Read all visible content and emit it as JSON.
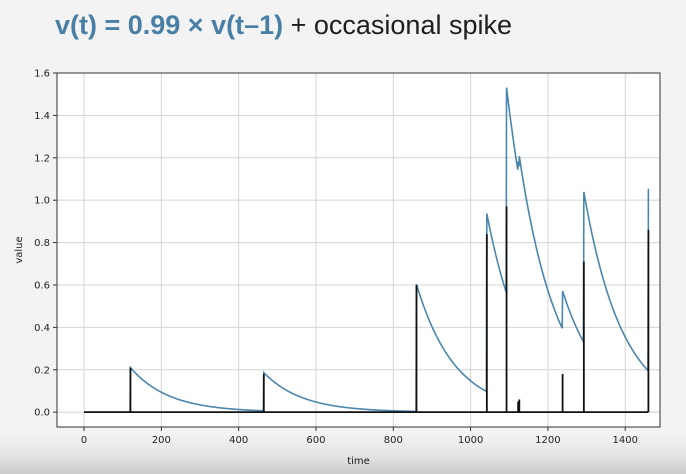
{
  "title": {
    "main": "v(t) = 0.99 × v(t–1)",
    "rest": " + occasional spike"
  },
  "chart_data": {
    "type": "line",
    "xlabel": "time",
    "ylabel": "value",
    "xlim": [
      -70,
      1490
    ],
    "ylim": [
      -0.07,
      1.6
    ],
    "xticks": [
      0,
      200,
      400,
      600,
      800,
      1000,
      1200,
      1400
    ],
    "yticks": [
      0.0,
      0.2,
      0.4,
      0.6,
      0.8,
      1.0,
      1.2,
      1.4,
      1.6
    ],
    "grid": true,
    "decay_factor": 0.99,
    "series_end_x": 1460,
    "spikes": [
      {
        "x": 120,
        "value": 0.21
      },
      {
        "x": 465,
        "value": 0.18
      },
      {
        "x": 860,
        "value": 0.6
      },
      {
        "x": 1042,
        "value": 0.84
      },
      {
        "x": 1093,
        "value": 0.97
      },
      {
        "x": 1123,
        "value": 0.05
      },
      {
        "x": 1126,
        "value": 0.06
      },
      {
        "x": 1238,
        "value": 0.18
      },
      {
        "x": 1293,
        "value": 0.71
      },
      {
        "x": 1460,
        "value": 0.86
      }
    ],
    "colors": {
      "decay_line": "#4b86ad",
      "spike_line": "#111111",
      "grid": "#d4d4d4",
      "frame": "#333333",
      "plot_bg": "#ffffff"
    }
  }
}
